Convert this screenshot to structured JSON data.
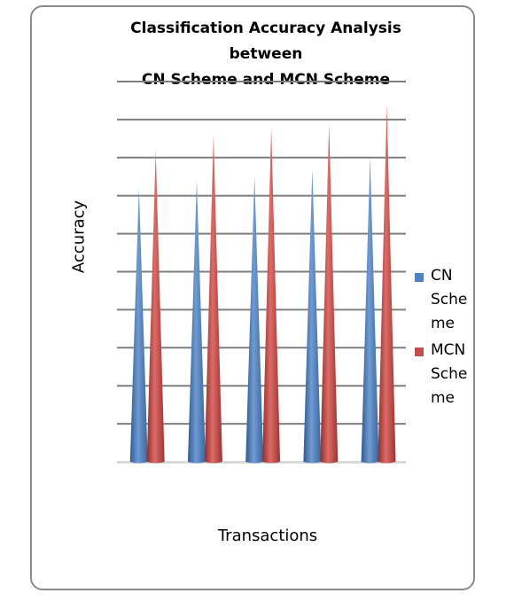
{
  "chart_data": {
    "type": "bar",
    "bar_shape": "cone",
    "title": "Classification Accuracy Analysis between CN Scheme and MCN Scheme",
    "title_lines": [
      "Classification Accuracy Analysis",
      "between",
      "CN Scheme and MCN Scheme"
    ],
    "xlabel": "Transactions",
    "ylabel": "Accuracy",
    "categories": [
      "",
      "",
      "",
      "",
      ""
    ],
    "ylim": [
      0,
      10
    ],
    "grid": true,
    "legend_position": "right",
    "series": [
      {
        "name": "CN Scheme",
        "legend_lines": [
          "CN",
          "Sche",
          "me"
        ],
        "color": "#4f81bd",
        "values": [
          7.2,
          7.4,
          7.5,
          7.7,
          8.0
        ]
      },
      {
        "name": "MCN Scheme",
        "legend_lines": [
          "MCN",
          "Sche",
          "me"
        ],
        "color": "#c0504d",
        "values": [
          8.2,
          8.6,
          8.8,
          8.9,
          9.4
        ]
      }
    ]
  }
}
